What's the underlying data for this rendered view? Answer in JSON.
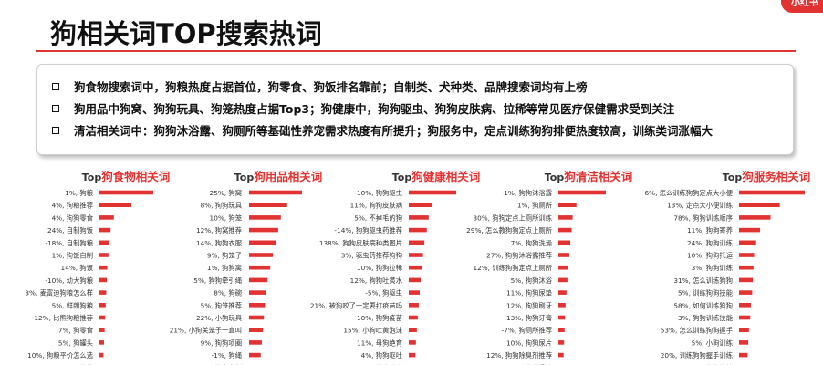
{
  "header": {
    "title": "狗相关词TOP搜索热词",
    "logo_text": "小红书",
    "accent_color": "#e23333"
  },
  "summary": {
    "bullet_icon": "square-bullet",
    "items": [
      "狗食物搜索词中，狗粮热度占据首位，狗零食、狗饭排名靠前；自制类、犬种类、品牌搜索词均有上榜",
      "狗用品中狗窝、狗狗玩具、狗笼热度占据Top3；狗健康中，狗狗驱虫、狗狗皮肤病、拉稀等常见医疗保健需求受到关注",
      "清洁相关词中：狗狗沐浴露、狗厕所等基础性养宠需求热度有所提升；狗服务中，定点训练狗狗排便热度较高，训练类词涨幅大"
    ]
  },
  "chart_data": [
    {
      "type": "bar",
      "title_prefix": "Top",
      "title": "狗食物相关词",
      "bar_color": "#e23333",
      "categories": [
        "1%, 狗粮",
        "4%, 狗粮推荐",
        "4%, 狗狗零食",
        "24%, 自制狗饭",
        "-18%, 自制狗粮",
        "1%, 狗饭自制",
        "14%, 狗饭",
        "-10%, 幼犬狗粮",
        "3%, 麦富迪狗粮怎么样",
        "5%, 鲜朗狗粮",
        "-12%, 比熊狗粮推荐",
        "7%, 狗零食",
        "5%, 狗罐头",
        "10%, 狗粮平价怎么选",
        "10%, 平价狗粮"
      ],
      "values": [
        100,
        60,
        28,
        22,
        20,
        18,
        16,
        15,
        14,
        13,
        12,
        11,
        10,
        9,
        9
      ]
    },
    {
      "type": "bar",
      "title_prefix": "Top",
      "title": "狗用品相关词",
      "bar_color": "#e23333",
      "categories": [
        "25%, 狗窝",
        "8%, 狗狗玩具",
        "10%, 狗笼",
        "12%, 狗窝推荐",
        "14%, 狗狗衣服",
        "9%, 狗笼子",
        "1%, 狗狗窝",
        "5%, 狗狗牵引绳",
        "8%, 狗碗",
        "5%, 狗笼推荐",
        "22%, 小狗玩具",
        "21%, 小狗关笼子一直叫",
        "9%, 狗狗项圈",
        "-1%, 狗绳",
        "12%, 狗窝自制"
      ],
      "values": [
        100,
        72,
        60,
        55,
        50,
        45,
        40,
        35,
        32,
        30,
        28,
        26,
        24,
        22,
        20
      ]
    },
    {
      "type": "bar",
      "title_prefix": "Top",
      "title": "狗健康相关词",
      "bar_color": "#e23333",
      "categories": [
        "-10%, 狗狗驱虫",
        "11%, 狗狗皮肤病",
        "5%, 不掉毛的狗",
        "-14%, 狗狗驱虫药推荐",
        "138%, 狗狗皮肤病种类图片",
        "3%, 驱虫药推荐狗狗",
        "10%, 狗狗拉稀",
        "12%, 狗狗吐黄水",
        "-5%, 狗驱虫",
        "21%, 被狗咬了一定要打疫苗吗",
        "10%, 狗狗疫苗",
        "15%, 小狗吐黄泡沫",
        "11%, 母狗绝育",
        "4%, 狗狗呕吐",
        "21%, 狗皮肤病"
      ],
      "values": [
        100,
        48,
        42,
        38,
        33,
        30,
        28,
        25,
        23,
        21,
        19,
        17,
        15,
        14,
        13
      ]
    },
    {
      "type": "bar",
      "title_prefix": "Top",
      "title": "狗清洁相关词",
      "bar_color": "#e23333",
      "categories": [
        "-1%, 狗狗沐浴露",
        "1%, 狗厕所",
        "30%, 狗狗定点上厕所训练",
        "29%, 怎么教狗狗定点上厕所",
        "7%, 狗狗洗澡",
        "27%, 狗狗沐浴露推荐",
        "12%, 训练狗狗定点上厕所",
        "5%, 狗狗沐浴",
        "11%, 狗狗尿垫",
        "12%, 狗狗刷牙",
        "13%, 狗狗牙膏",
        "-7%, 狗厕所推荐",
        "10%, 狗狗尿片",
        "12%, 狗狗除臭剂推荐",
        "6%, 狗狗香波"
      ],
      "values": [
        100,
        38,
        30,
        28,
        25,
        23,
        21,
        19,
        17,
        15,
        14,
        13,
        12,
        11,
        10
      ]
    },
    {
      "type": "bar",
      "title_prefix": "Top",
      "title": "狗服务相关词",
      "bar_color": "#e23333",
      "categories": [
        "6%, 怎么训练狗狗定点大小便",
        "13%, 定点大小便训练",
        "78%, 狗狗训练顺序",
        "11%, 狗狗寄养",
        "24%, 狗狗训练",
        "10%, 狗狗托运",
        "3%, 狗狗训练",
        "31%, 怎么训练狗狗",
        "5%, 训练狗狗技能",
        "58%, 如何训练狗狗",
        "-3%, 狗狗训练技能",
        "53%, 怎么训练狗狗握手",
        "5%, 小狗训练",
        "20%, 训练狗狗握手训练",
        "6%, 狗狗洗护"
      ],
      "values": [
        100,
        62,
        48,
        32,
        26,
        23,
        22,
        21,
        20,
        18,
        17,
        15,
        14,
        13,
        12
      ]
    }
  ]
}
